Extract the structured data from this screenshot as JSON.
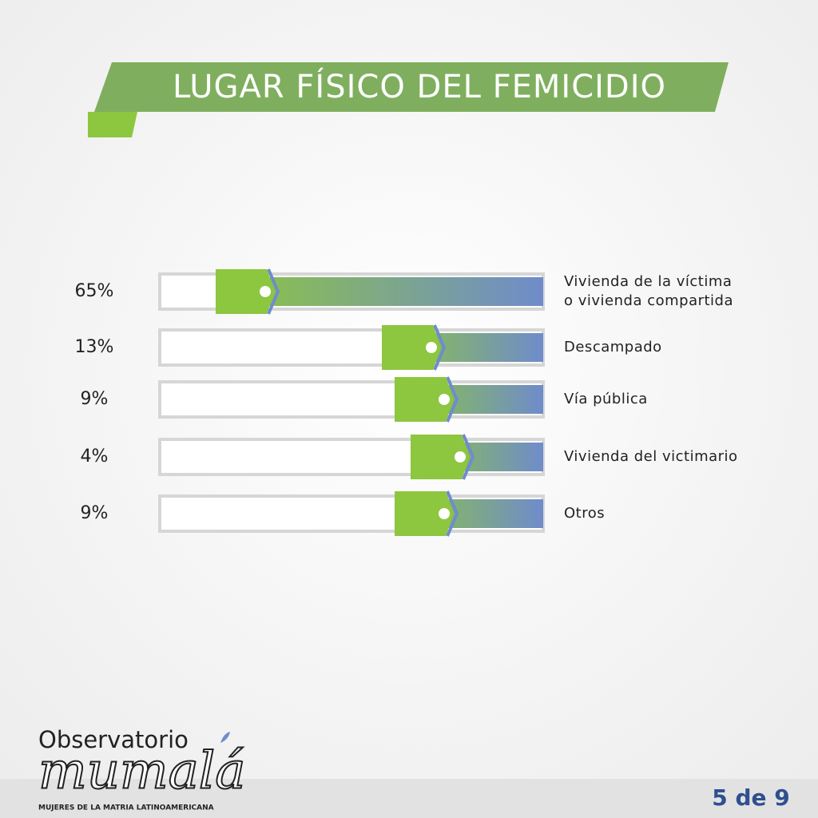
{
  "chart_data": {
    "type": "bar",
    "orientation": "horizontal",
    "title": "LUGAR FÍSICO DEL FEMICIDIO",
    "categories": [
      "Vivienda de la víctima\no vivienda compartida",
      "Descampado",
      "Vía pública",
      "Vivienda del victimario",
      "Otros"
    ],
    "values": [
      65,
      13,
      9,
      4,
      9
    ],
    "value_labels": [
      "65%",
      "13%",
      "9%",
      "4%",
      "9%"
    ],
    "color": "#8dc63f",
    "color_end": "#6f8ccb"
  },
  "footer": {
    "logo_top": "Observatorio",
    "logo_main": "mumalá",
    "logo_caption": "MUJERES DE LA MATRIA LATINOAMERICANA",
    "page": "5 de 9"
  }
}
